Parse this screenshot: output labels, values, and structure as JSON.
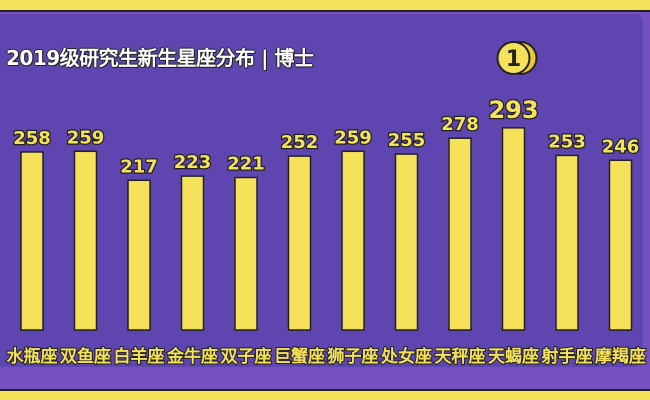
{
  "chart_data": {
    "type": "bar",
    "title": "2019级研究生新生星座分布 | 博士",
    "categories": [
      "水瓶座",
      "双鱼座",
      "白羊座",
      "金牛座",
      "双子座",
      "巨蟹座",
      "狮子座",
      "处女座",
      "天秤座",
      "天蝎座",
      "射手座",
      "摩羯座"
    ],
    "values": [
      258,
      259,
      217,
      223,
      221,
      252,
      259,
      255,
      278,
      293,
      253,
      246
    ],
    "highlight": {
      "category": "天蝎座",
      "badge": "1",
      "badge_icon": "first-place-medal-icon"
    },
    "bar_color": "#f5e15a",
    "background_color": "#5e45b0",
    "grid": false,
    "ylim": [
      0,
      300
    ]
  }
}
